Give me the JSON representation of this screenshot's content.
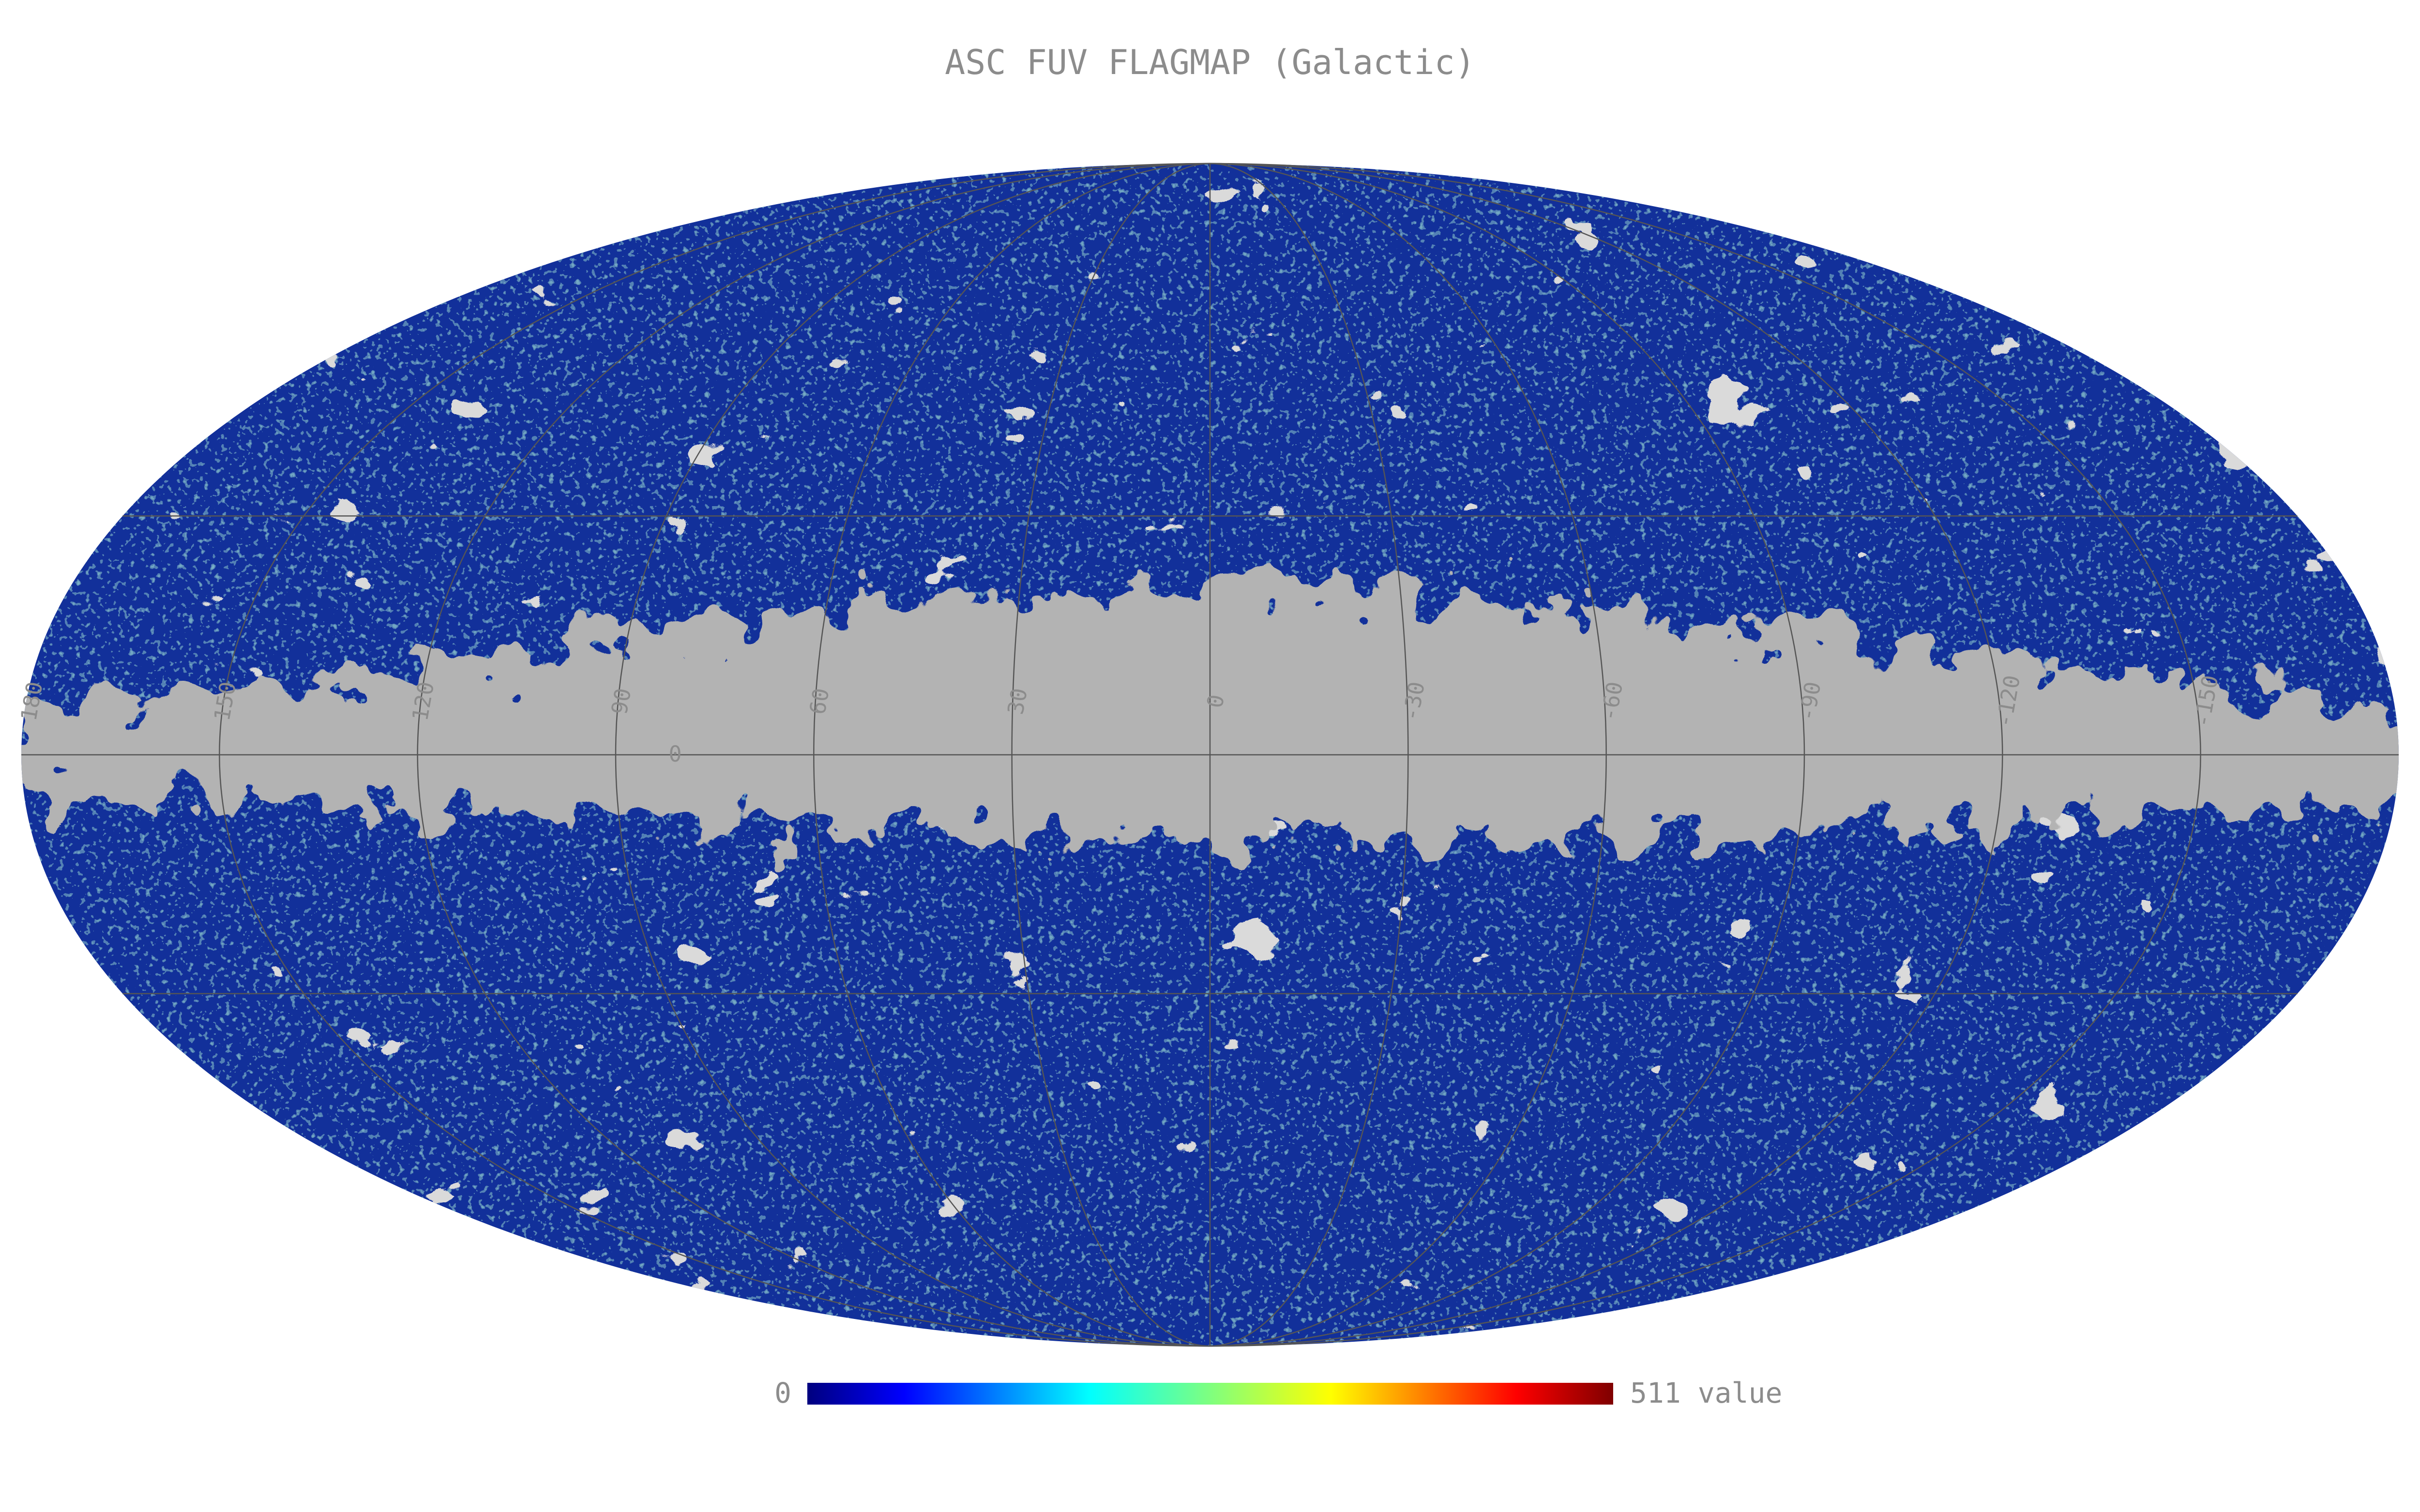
{
  "title": "ASC FUV FLAGMAP (Galactic)",
  "graticule": {
    "longitudes": [
      180,
      150,
      120,
      90,
      60,
      30,
      0,
      -30,
      -60,
      -90,
      -120,
      -150
    ],
    "parallels": [
      -30,
      0,
      30
    ],
    "latitude_labels": [
      0
    ]
  },
  "colorbar": {
    "min": 0,
    "max": 511,
    "unit": "value"
  }
}
